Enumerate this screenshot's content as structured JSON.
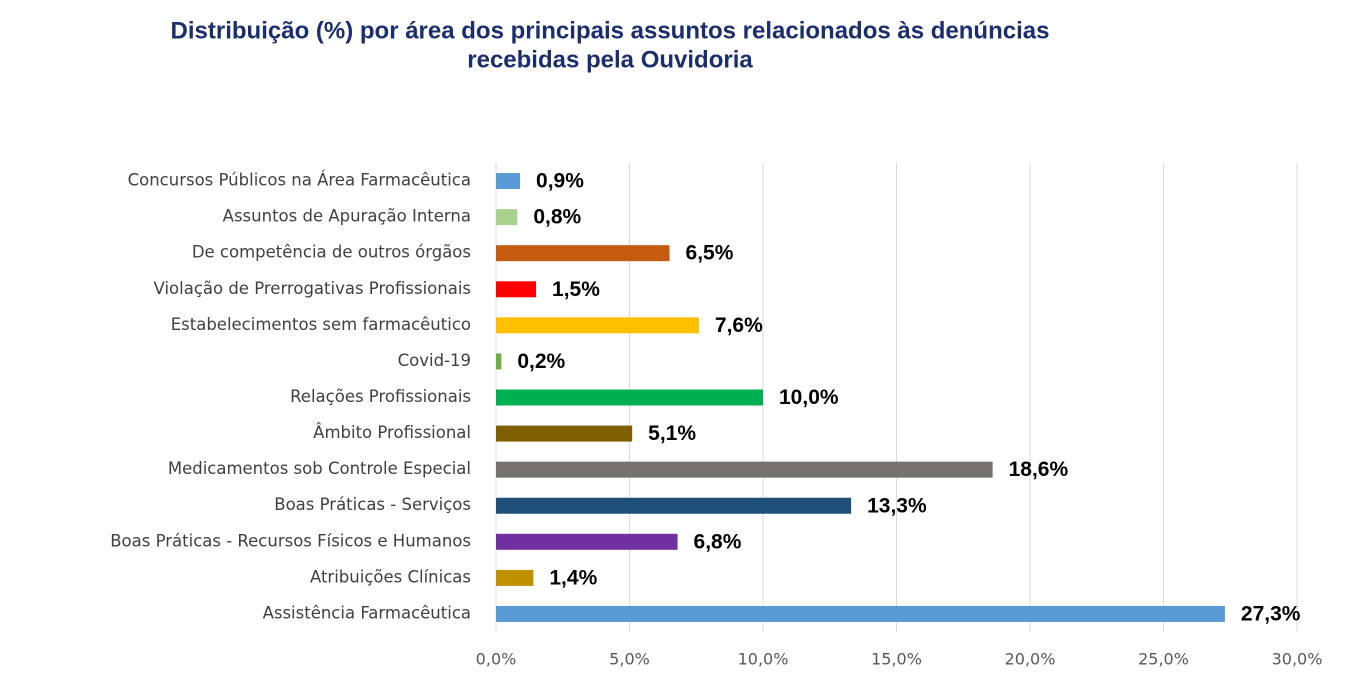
{
  "chart_data": {
    "type": "bar",
    "orientation": "horizontal",
    "title": [
      "Distribuição (%) por área dos principais assuntos relacionados às denúncias",
      "recebidas pela Ouvidoria"
    ],
    "categories": [
      "Concursos Públicos na Área Farmacêutica",
      "Assuntos de Apuração Interna",
      "De competência de outros órgãos",
      "Violação de Prerrogativas Profissionais",
      "Estabelecimentos sem farmacêutico",
      "Covid-19",
      "Relações Profissionais",
      "Âmbito Profissional",
      "Medicamentos sob Controle Especial",
      "Boas Práticas - Serviços",
      "Boas Práticas - Recursos Físicos e Humanos",
      "Atribuições Clínicas",
      "Assistência Farmacêutica"
    ],
    "values": [
      0.9,
      0.8,
      6.5,
      1.5,
      7.6,
      0.2,
      10.0,
      5.1,
      18.6,
      13.3,
      6.8,
      1.4,
      27.3
    ],
    "value_labels": [
      "0,9%",
      "0,8%",
      "6,5%",
      "1,5%",
      "7,6%",
      "0,2%",
      "10,0%",
      "5,1%",
      "18,6%",
      "13,3%",
      "6,8%",
      "1,4%",
      "27,3%"
    ],
    "colors": [
      "#5b9bd5",
      "#a9d18e",
      "#c55a11",
      "#ff0000",
      "#ffc000",
      "#70ad47",
      "#00b050",
      "#7f6000",
      "#767171",
      "#1f4e79",
      "#7030a0",
      "#bf9000",
      "#5b9bd5"
    ],
    "xlim": [
      0,
      30
    ],
    "xticks": [
      {
        "value": 0,
        "label": "0,0%"
      },
      {
        "value": 5,
        "label": "5,0%"
      },
      {
        "value": 10,
        "label": "10,0%"
      },
      {
        "value": 15,
        "label": "15,0%"
      },
      {
        "value": 20,
        "label": "20,0%"
      },
      {
        "value": 25,
        "label": "25,0%"
      },
      {
        "value": 30,
        "label": "30,0%"
      }
    ],
    "grid": true
  }
}
